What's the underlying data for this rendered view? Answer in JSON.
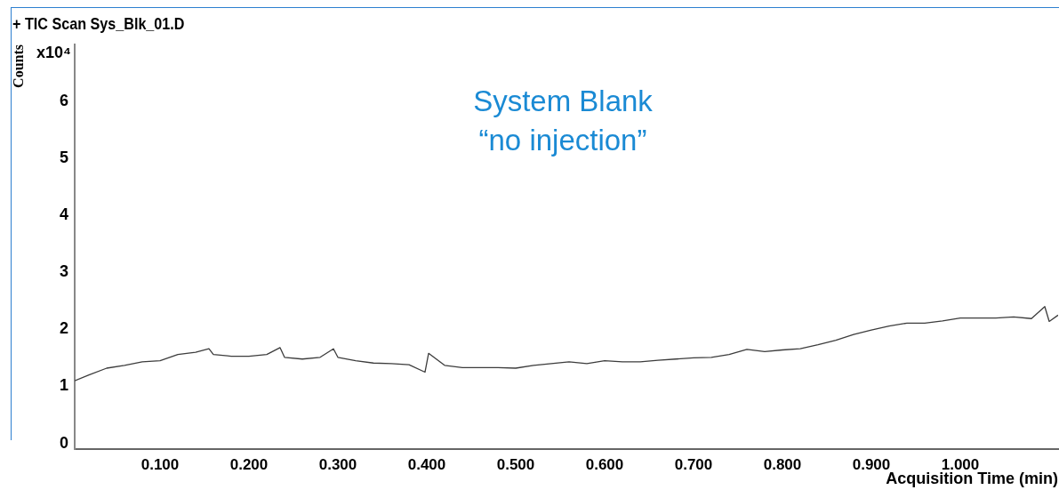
{
  "chart_data": {
    "type": "line",
    "title": "+ TIC Scan Sys_Blk_01.D",
    "xlabel": "Acquisition Time (min)",
    "ylabel": "Counts",
    "annotations": [
      "x10⁴",
      "System Blank",
      "“no injection”"
    ],
    "xlim": [
      0.004,
      1.11
    ],
    "ylim": [
      -0.1,
      7
    ],
    "xticks": [
      {
        "value": 0.1,
        "label": "0.100"
      },
      {
        "value": 0.2,
        "label": "0.200"
      },
      {
        "value": 0.3,
        "label": "0.300"
      },
      {
        "value": 0.4,
        "label": "0.400"
      },
      {
        "value": 0.5,
        "label": "0.500"
      },
      {
        "value": 0.6,
        "label": "0.600"
      },
      {
        "value": 0.7,
        "label": "0.700"
      },
      {
        "value": 0.8,
        "label": "0.800"
      },
      {
        "value": 0.9,
        "label": "0.900"
      },
      {
        "value": 1,
        "label": "1.000"
      }
    ],
    "yticks": [
      0,
      1,
      2,
      3,
      4,
      5,
      6
    ],
    "grid": false,
    "legend": false,
    "marker": "none",
    "line_style": "solid",
    "series": [
      {
        "color": "#3c3c3c",
        "x": [
          0.004,
          0.02,
          0.04,
          0.06,
          0.08,
          0.1,
          0.12,
          0.14,
          0.155,
          0.16,
          0.18,
          0.2,
          0.22,
          0.235,
          0.24,
          0.26,
          0.28,
          0.295,
          0.3,
          0.32,
          0.34,
          0.36,
          0.38,
          0.398,
          0.402,
          0.42,
          0.44,
          0.46,
          0.48,
          0.5,
          0.52,
          0.54,
          0.56,
          0.58,
          0.6,
          0.62,
          0.64,
          0.66,
          0.68,
          0.7,
          0.72,
          0.74,
          0.76,
          0.78,
          0.8,
          0.82,
          0.84,
          0.86,
          0.88,
          0.9,
          0.92,
          0.94,
          0.96,
          0.98,
          1.0,
          1.02,
          1.04,
          1.06,
          1.08,
          1.095,
          1.1,
          1.11
        ],
        "values": [
          1.1,
          1.2,
          1.32,
          1.37,
          1.43,
          1.45,
          1.56,
          1.6,
          1.66,
          1.56,
          1.53,
          1.53,
          1.56,
          1.68,
          1.51,
          1.48,
          1.51,
          1.66,
          1.51,
          1.45,
          1.41,
          1.4,
          1.38,
          1.25,
          1.58,
          1.37,
          1.33,
          1.33,
          1.33,
          1.32,
          1.37,
          1.4,
          1.43,
          1.4,
          1.45,
          1.43,
          1.43,
          1.46,
          1.48,
          1.5,
          1.51,
          1.56,
          1.65,
          1.61,
          1.64,
          1.66,
          1.73,
          1.81,
          1.91,
          1.99,
          2.06,
          2.11,
          2.11,
          2.15,
          2.2,
          2.2,
          2.2,
          2.22,
          2.19,
          2.4,
          2.14,
          2.25
        ]
      }
    ]
  }
}
